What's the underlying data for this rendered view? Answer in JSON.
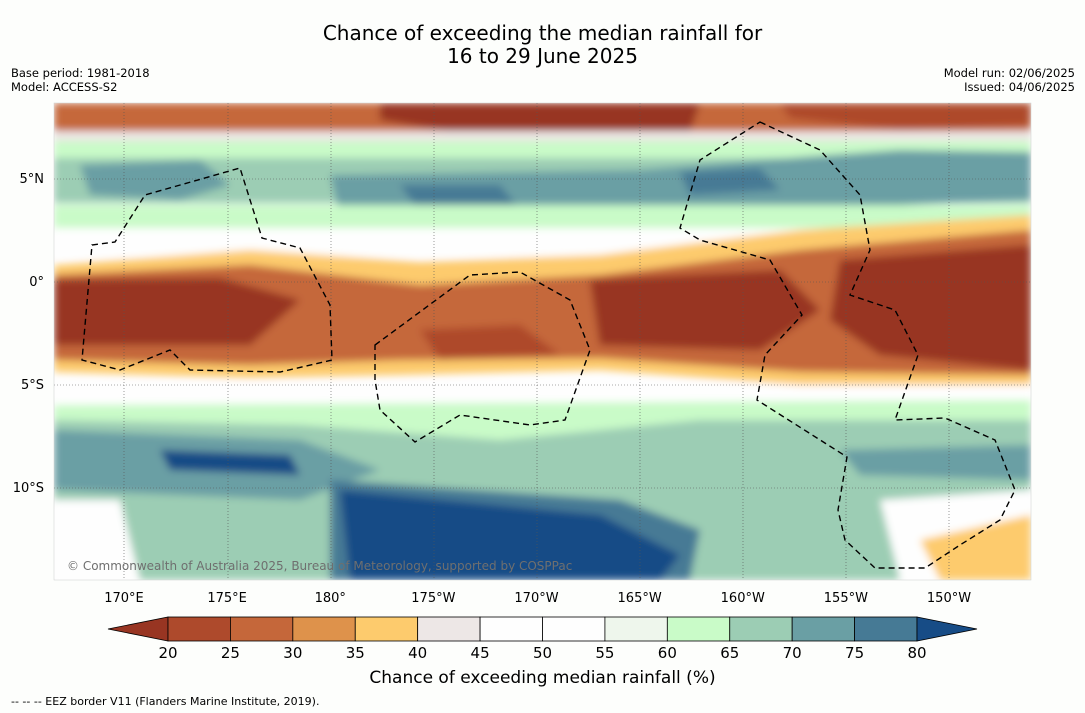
{
  "title": {
    "line1": "Chance of exceeding the median rainfall for",
    "line2": "16 to 29 June 2025"
  },
  "meta": {
    "base_period": "Base period: 1981-2018",
    "model": "Model: ACCESS-S2",
    "model_run": "Model run: 02/06/2025",
    "issued": "Issued: 04/06/2025"
  },
  "copyright": "© Commonwealth of Australia 2025, Bureau of Meteorology, supported by COSPPac",
  "footer": "-- -- -- EEZ border V11 (Flanders Marine Institute, 2019).",
  "map": {
    "lat_labels": [
      "5°N",
      "0°",
      "5°S",
      "10°S"
    ],
    "lat_values": [
      5,
      0,
      -5,
      -10
    ],
    "lon_labels": [
      "170°E",
      "175°E",
      "180°",
      "175°W",
      "170°W",
      "165°W",
      "160°W",
      "155°W",
      "150°W"
    ],
    "lon_values": [
      170,
      175,
      180,
      185,
      190,
      195,
      200,
      205,
      210
    ]
  },
  "colorbar": {
    "title": "Chance of exceeding median rainfall (%)",
    "ticks": [
      "20",
      "25",
      "30",
      "35",
      "40",
      "45",
      "50",
      "55",
      "60",
      "65",
      "70",
      "75",
      "80"
    ],
    "colors": [
      "#983522",
      "#ae4a2c",
      "#c5673a",
      "#de924b",
      "#fdcb6d",
      "#ede7e6",
      "#fefefe",
      "#fefefe",
      "#eef6ec",
      "#c9fbc8",
      "#9ccdb4",
      "#6a9fa4",
      "#467a95",
      "#174c86"
    ]
  }
}
